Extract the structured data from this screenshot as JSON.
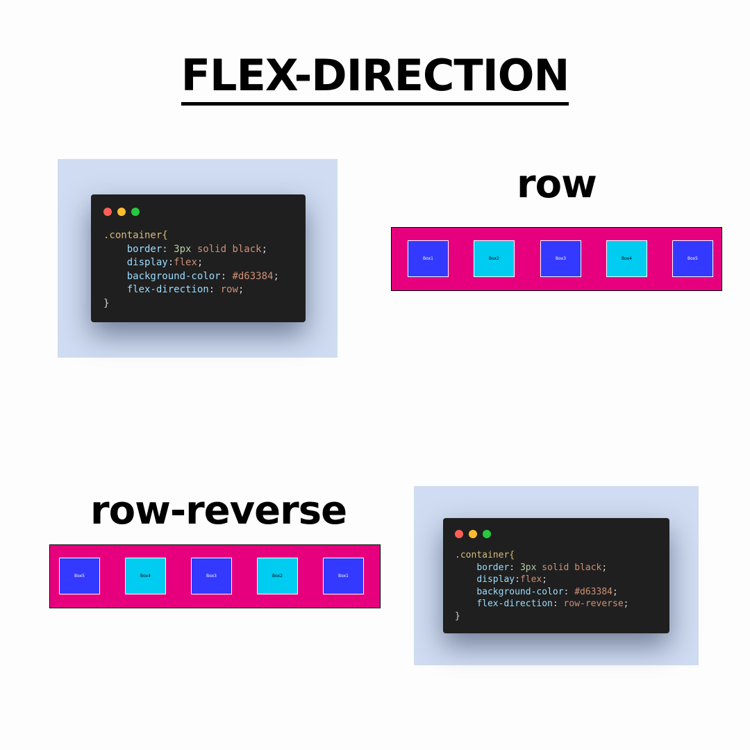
{
  "title": "FLEX-DIRECTION",
  "sections": {
    "row": {
      "label": "row",
      "code": {
        "selector": ".container{",
        "lines": [
          {
            "prop": "border",
            "sep": ": ",
            "value_num": "3px",
            "value_rest": " solid black",
            "end": ";"
          },
          {
            "prop": "display",
            "sep": ":",
            "value_num": "",
            "value_rest": "flex",
            "end": ";"
          },
          {
            "prop": "background-color",
            "sep": ": ",
            "value_num": "",
            "value_rest": "#d63384",
            "end": ";"
          },
          {
            "prop": "flex-direction",
            "sep": ": ",
            "value_num": "",
            "value_rest": "row",
            "end": ";"
          }
        ],
        "close": "}"
      },
      "boxes": [
        "Box1",
        "Box2",
        "Box3",
        "Box4",
        "Box5"
      ]
    },
    "row_reverse": {
      "label": "row-reverse",
      "code": {
        "selector": ".container{",
        "lines": [
          {
            "prop": "border",
            "sep": ": ",
            "value_num": "3px",
            "value_rest": " solid black",
            "end": ";"
          },
          {
            "prop": "display",
            "sep": ":",
            "value_num": "",
            "value_rest": "flex",
            "end": ";"
          },
          {
            "prop": "background-color",
            "sep": ": ",
            "value_num": "",
            "value_rest": "#d63384",
            "end": ";"
          },
          {
            "prop": "flex-direction",
            "sep": ": ",
            "value_num": "",
            "value_rest": "row-reverse",
            "end": ";"
          }
        ],
        "close": "}"
      },
      "boxes": [
        "Box5",
        "Box4",
        "Box3",
        "Box2",
        "Box1"
      ]
    }
  },
  "colors": {
    "container_bg": "#e6007e",
    "box_blue": "#3339ff",
    "box_cyan": "#00ccf2",
    "window_dot_red": "#ff5f56",
    "window_dot_yellow": "#ffbd2e",
    "window_dot_green": "#27c93f"
  }
}
